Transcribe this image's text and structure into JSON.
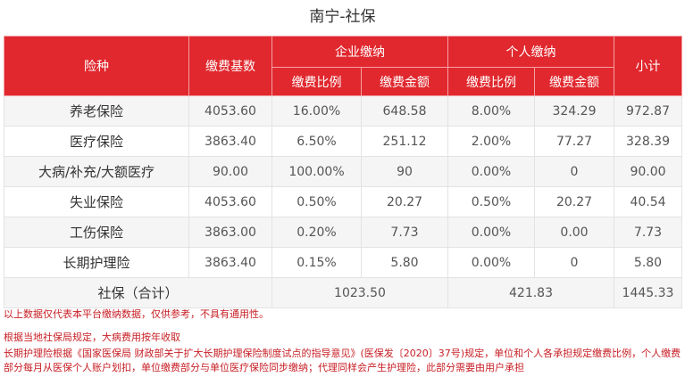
{
  "title": "南宁-社保",
  "header": {
    "type": "险种",
    "base": "缴费基数",
    "company": "企业缴纳",
    "personal": "个人缴纳",
    "subtotal": "小计",
    "rate": "缴费比例",
    "amount": "缴费金额"
  },
  "rows": [
    {
      "name": "养老保险",
      "base": "4053.60",
      "c_rate": "16.00%",
      "c_amt": "648.58",
      "p_rate": "8.00%",
      "p_amt": "324.29",
      "total": "972.87"
    },
    {
      "name": "医疗保险",
      "base": "3863.40",
      "c_rate": "6.50%",
      "c_amt": "251.12",
      "p_rate": "2.00%",
      "p_amt": "77.27",
      "total": "328.39"
    },
    {
      "name": "大病/补充/大额医疗",
      "base": "90.00",
      "c_rate": "100.00%",
      "c_amt": "90",
      "p_rate": "0.00%",
      "p_amt": "0",
      "total": "90.00"
    },
    {
      "name": "失业保险",
      "base": "4053.60",
      "c_rate": "0.50%",
      "c_amt": "20.27",
      "p_rate": "0.50%",
      "p_amt": "20.27",
      "total": "40.54"
    },
    {
      "name": "工伤保险",
      "base": "3863.00",
      "c_rate": "0.20%",
      "c_amt": "7.73",
      "p_rate": "0.00%",
      "p_amt": "0.00",
      "total": "7.73"
    },
    {
      "name": "长期护理险",
      "base": "3863.40",
      "c_rate": "0.15%",
      "c_amt": "5.80",
      "p_rate": "0.00%",
      "p_amt": "0",
      "total": "5.80"
    }
  ],
  "total_row": {
    "label": "社保（合计）",
    "company": "1023.50",
    "personal": "421.83",
    "total": "1445.33"
  },
  "notes": [
    "以上数据仅代表本平台缴纳数据，仅供参考，不具有通用性。",
    "根据当地社保局规定，大病费用按年收取",
    "长期护理险根据《国家医保局 财政部关于扩大长期护理保险制度试点的指导意见》(医保发〔2020〕37号)规定，单位和个人各承担规定缴费比例，个人缴费部分每月从医保个人账户划扣，单位缴费部分与单位医疗保险同步缴纳；代理同样会产生护理险，此部分需要由用户承担"
  ],
  "colors": {
    "header_bg": "#e0282e",
    "note_text": "#c71e24",
    "stripe": "#f5f5f5"
  }
}
